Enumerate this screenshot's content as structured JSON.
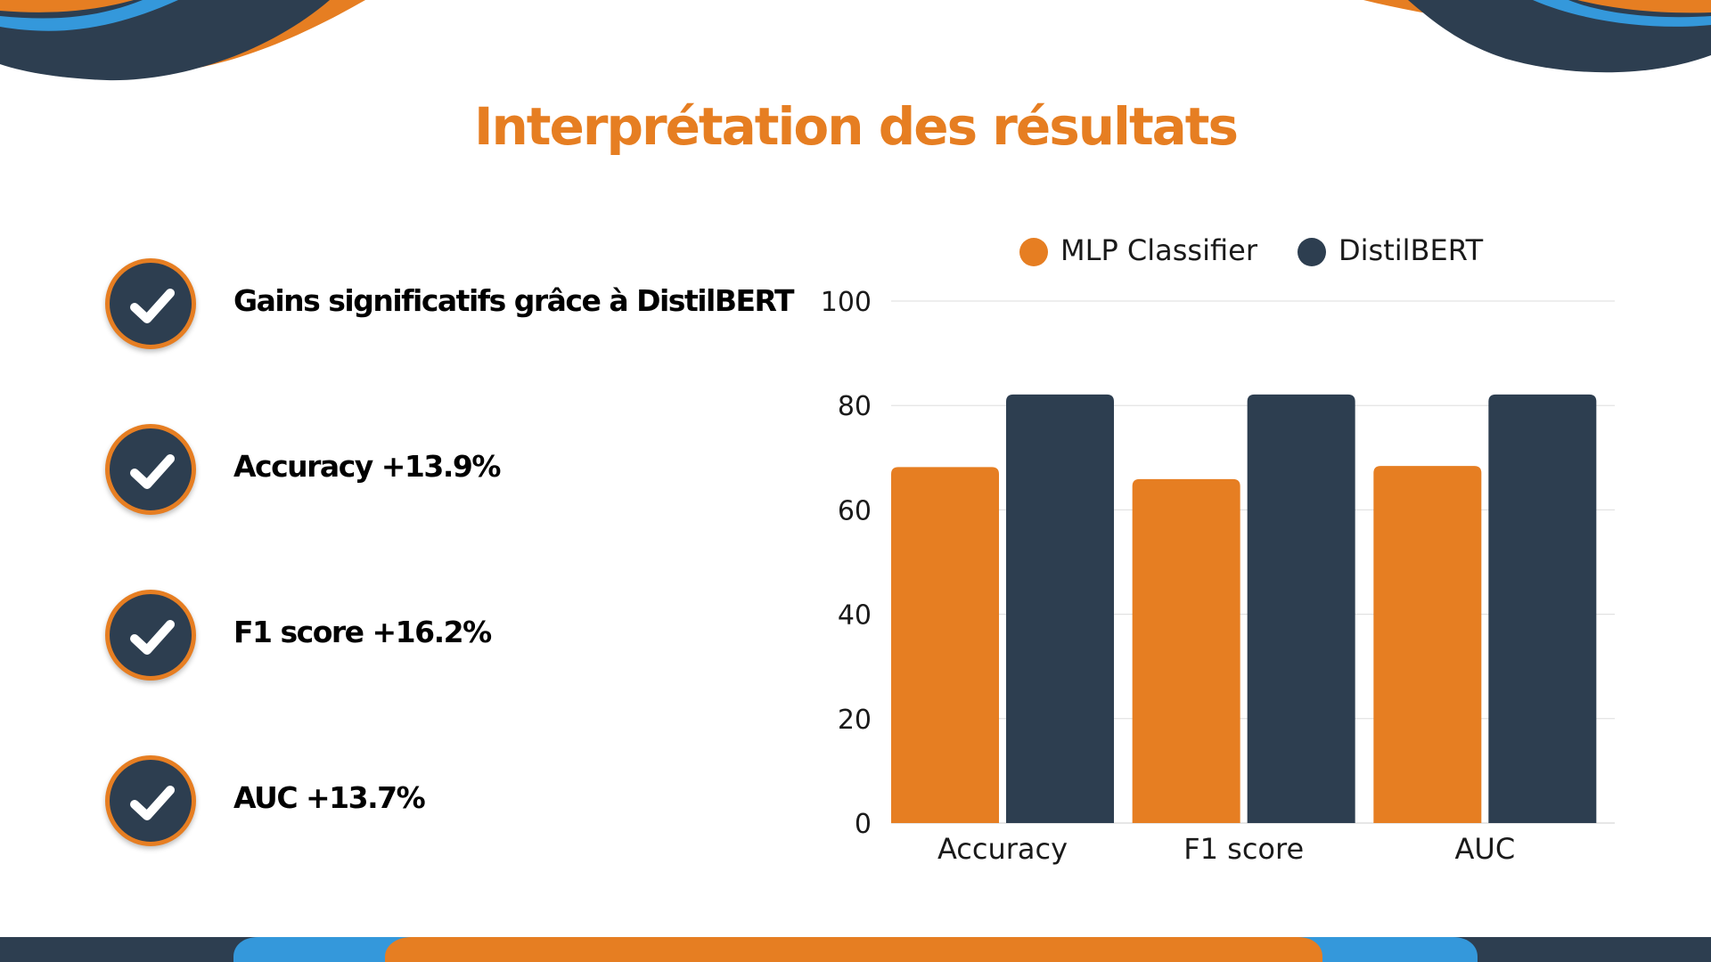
{
  "title": "Interprétation des résultats",
  "points": [
    {
      "label": "Gains significatifs grâce à DistilBERT"
    },
    {
      "label": "Accuracy +13.9%"
    },
    {
      "label": "F1 score +16.2%"
    },
    {
      "label": "AUC +13.7%"
    }
  ],
  "colors": {
    "orange": "#e67e22",
    "navy": "#2d3e50",
    "blue": "#3498db"
  },
  "chart_data": {
    "type": "bar",
    "categories": [
      "Accuracy",
      "F1 score",
      "AUC"
    ],
    "series": [
      {
        "name": "MLP Classifier",
        "values": [
          68.2,
          65.9,
          68.4
        ],
        "color": "#e67e22"
      },
      {
        "name": "DistilBERT",
        "values": [
          82.1,
          82.1,
          82.1
        ],
        "color": "#2d3e50"
      }
    ],
    "yticks": [
      "0",
      "20",
      "40",
      "60",
      "80",
      "100"
    ],
    "ylim": [
      0,
      100
    ],
    "grid": true,
    "legend": "top"
  }
}
